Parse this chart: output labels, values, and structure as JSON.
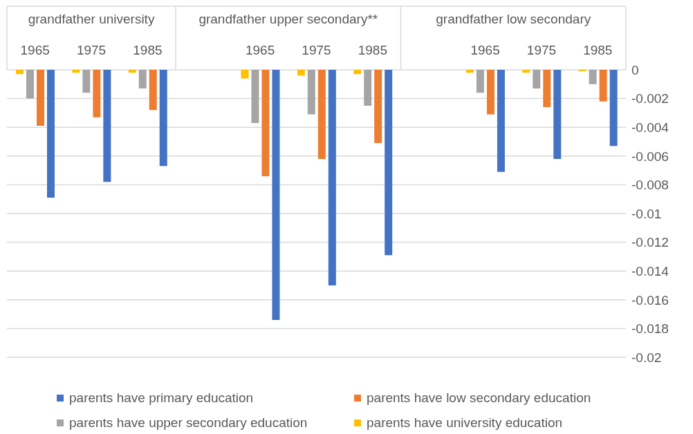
{
  "chart_data": {
    "type": "bar",
    "categories": [
      "1965",
      "1975",
      "1985",
      null,
      "1965",
      "1975",
      "1985",
      null,
      "1965",
      "1975",
      "1985"
    ],
    "annotations": [
      "grandfather university",
      "grandfather upper secondary**",
      "grandfather low secondary"
    ],
    "series": [
      {
        "name": "parents have primary education",
        "color": "#4472c4",
        "values": [
          -0.0089,
          -0.0078,
          -0.0067,
          null,
          -0.0174,
          -0.015,
          -0.0129,
          null,
          -0.0071,
          -0.0062,
          -0.0053
        ]
      },
      {
        "name": "parents have low secondary education",
        "color": "#ed7d31",
        "values": [
          -0.0039,
          -0.0033,
          -0.0028,
          null,
          -0.0074,
          -0.0062,
          -0.0051,
          null,
          -0.0031,
          -0.0026,
          -0.0022
        ]
      },
      {
        "name": "parents have upper secondary education",
        "color": "#a5a5a5",
        "values": [
          -0.002,
          -0.0016,
          -0.0013,
          null,
          -0.0037,
          -0.0031,
          -0.0025,
          null,
          -0.0016,
          -0.0013,
          -0.001
        ]
      },
      {
        "name": "parents have university education",
        "color": "#ffc000",
        "values": [
          -0.0003,
          -0.0002,
          -0.0002,
          null,
          -0.0006,
          -0.0004,
          -0.0003,
          null,
          -0.0002,
          -0.0002,
          -0.0001
        ]
      }
    ],
    "ylim": [
      -0.02,
      0
    ],
    "yticks": [
      0,
      -0.002,
      -0.004,
      -0.006,
      -0.008,
      -0.01,
      -0.012,
      -0.014,
      -0.016,
      -0.018,
      -0.02
    ],
    "grid": "y",
    "legend": "bottom"
  }
}
